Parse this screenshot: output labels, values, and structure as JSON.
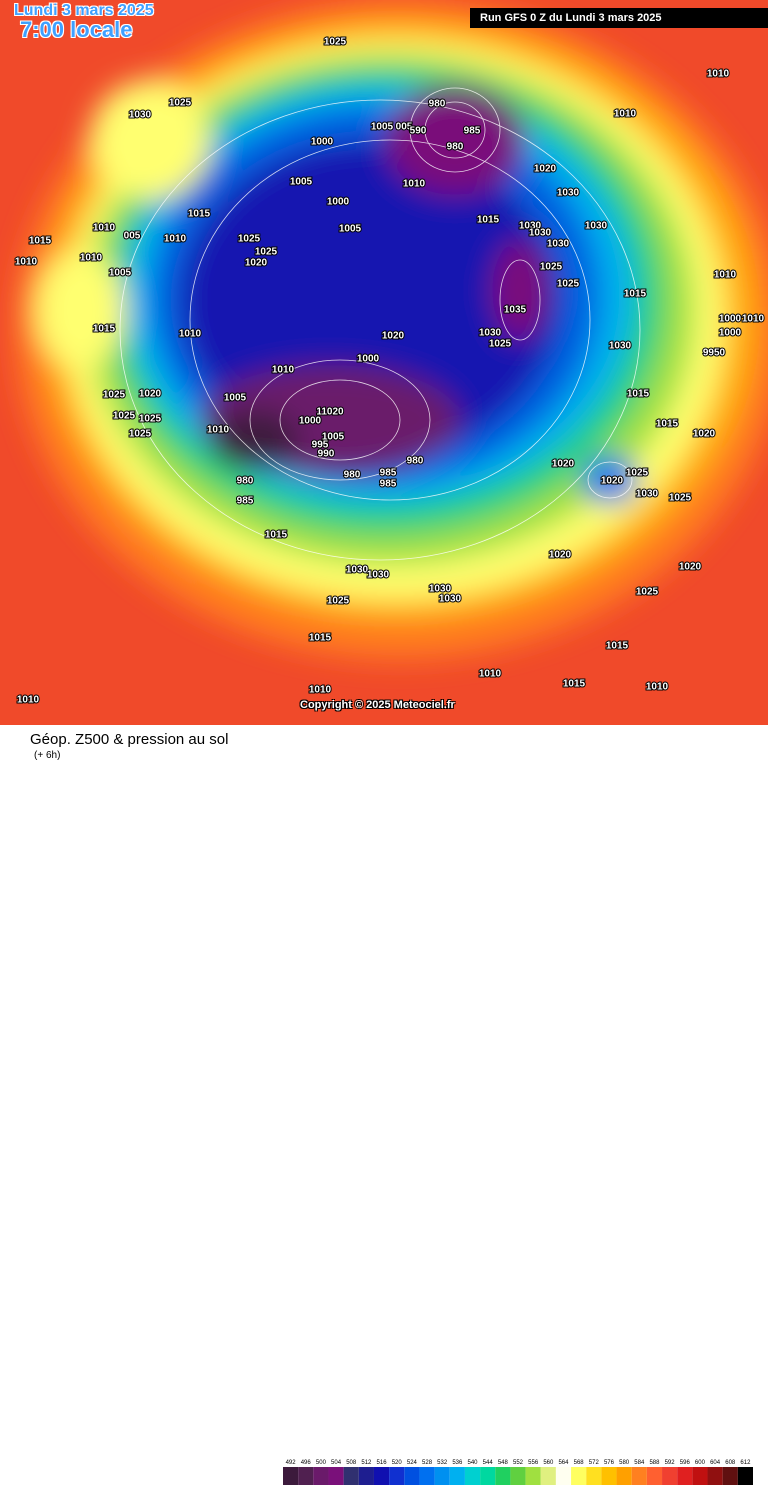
{
  "header": {
    "date": "Lundi 3 mars 2025",
    "hour": "7:00 locale",
    "run": "Run GFS 0 Z du Lundi 3 mars 2025"
  },
  "footer": {
    "title": "Géop. Z500 & pression au sol",
    "subtitle": "(+ 6h)",
    "copyright": "Copyright © 2025 Meteociel.fr"
  },
  "scale": {
    "labels": [
      "492",
      "496",
      "500",
      "504",
      "508",
      "512",
      "516",
      "520",
      "524",
      "528",
      "532",
      "536",
      "540",
      "544",
      "548",
      "552",
      "556",
      "560",
      "564",
      "568",
      "572",
      "576",
      "580",
      "584",
      "588",
      "592",
      "596",
      "600",
      "604",
      "608",
      "612"
    ],
    "colors": [
      "#3c1a3c",
      "#502050",
      "#6a1a6a",
      "#7a107a",
      "#303070",
      "#1e1e90",
      "#1010b0",
      "#1030d0",
      "#0050e0",
      "#0070f0",
      "#0090f0",
      "#00b0f0",
      "#00d0d0",
      "#00d8a0",
      "#20d060",
      "#60d040",
      "#a0e040",
      "#e0f080",
      "#fffff0",
      "#ffff60",
      "#ffe020",
      "#ffc000",
      "#ffa000",
      "#ff8020",
      "#ff6030",
      "#f04030",
      "#e02020",
      "#c01010",
      "#901010",
      "#601010",
      "#000000"
    ]
  },
  "isobar_labels": [
    "1025",
    "1010",
    "1025",
    "1030",
    "980",
    "1005",
    "005",
    "590",
    "985",
    "980",
    "1010",
    "1000",
    "1020",
    "1010",
    "1030",
    "1005",
    "1000",
    "1005",
    "1015",
    "1015",
    "1030",
    "1030",
    "1030",
    "1015",
    "1010",
    "005",
    "1010",
    "1025",
    "1025",
    "1020",
    "1030",
    "1010",
    "1010",
    "1025",
    "1025",
    "1005",
    "1010",
    "1015",
    "1035",
    "1015",
    "1010",
    "1030",
    "1025",
    "1020",
    "1030",
    "1000",
    "1010",
    "1000",
    "9950",
    "1000",
    "1010",
    "1020",
    "1025",
    "1005",
    "1015",
    "1025",
    "1025",
    "11020",
    "1010",
    "1000",
    "1005",
    "1025",
    "1015",
    "1020",
    "990",
    "995",
    "1020",
    "980",
    "980",
    "985",
    "985",
    "1020",
    "1025",
    "980",
    "1030",
    "1025",
    "985",
    "1015",
    "1020",
    "1020",
    "1030",
    "1030",
    "1030",
    "1030",
    "1025",
    "1025",
    "1015",
    "1015",
    "1010",
    "1015",
    "1010",
    "1010",
    "1010"
  ]
}
